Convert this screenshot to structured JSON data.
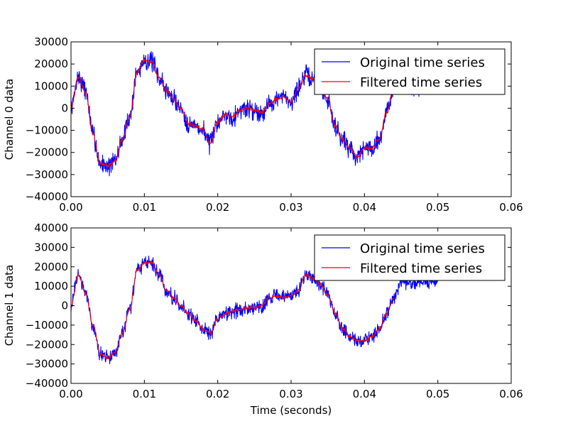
{
  "chart_data": [
    {
      "type": "line",
      "ylabel": "Channel 0 data",
      "xlabel": "",
      "xlim": [
        0.0,
        0.06
      ],
      "ylim": [
        -40000,
        30000
      ],
      "xticks": [
        0.0,
        0.01,
        0.02,
        0.03,
        0.04,
        0.05,
        0.06
      ],
      "xtick_labels": [
        "0.00",
        "0.01",
        "0.02",
        "0.03",
        "0.04",
        "0.05",
        "0.06"
      ],
      "yticks": [
        -40000,
        -30000,
        -20000,
        -10000,
        0,
        10000,
        20000,
        30000
      ],
      "ytick_labels": [
        "−40000",
        "−30000",
        "−20000",
        "−10000",
        "0",
        "10000",
        "20000",
        "30000"
      ],
      "grid": false,
      "legend_position": "top-right",
      "series": [
        {
          "name": "Original time series",
          "color": "#0000ff",
          "noise": 5500,
          "seed": 7,
          "x": [
            0.0,
            0.001,
            0.002,
            0.003,
            0.004,
            0.005,
            0.006,
            0.007,
            0.008,
            0.009,
            0.01,
            0.011,
            0.012,
            0.013,
            0.014,
            0.015,
            0.016,
            0.017,
            0.018,
            0.019,
            0.02,
            0.021,
            0.022,
            0.023,
            0.024,
            0.025,
            0.026,
            0.027,
            0.028,
            0.029,
            0.03,
            0.031,
            0.032,
            0.033,
            0.034,
            0.035,
            0.036,
            0.037,
            0.038,
            0.039,
            0.04,
            0.041,
            0.042,
            0.043,
            0.044,
            0.045,
            0.046,
            0.047,
            0.048
          ],
          "y": [
            0,
            14000,
            8000,
            -12000,
            -25000,
            -26000,
            -24000,
            -14000,
            -4000,
            16000,
            22000,
            21000,
            14000,
            8000,
            4000,
            0,
            -7000,
            -8000,
            -10000,
            -16000,
            -6000,
            -3000,
            -4000,
            -1000,
            0,
            -1000,
            -2000,
            2000,
            4000,
            5000,
            3000,
            9000,
            15000,
            13000,
            10000,
            4000,
            -8000,
            -14000,
            -18000,
            -22000,
            -18000,
            -18000,
            -14000,
            -2000,
            10000,
            10000,
            10000,
            10000,
            10000
          ]
        },
        {
          "name": "Filtered time series",
          "color": "#ff0000",
          "noise": 1100,
          "seed": 19,
          "x": [
            0.0,
            0.001,
            0.002,
            0.003,
            0.004,
            0.005,
            0.006,
            0.007,
            0.008,
            0.009,
            0.01,
            0.011,
            0.012,
            0.013,
            0.014,
            0.015,
            0.016,
            0.017,
            0.018,
            0.019,
            0.02,
            0.021,
            0.022,
            0.023,
            0.024,
            0.025,
            0.026,
            0.027,
            0.028,
            0.029,
            0.03,
            0.031,
            0.032,
            0.033,
            0.034,
            0.035,
            0.036,
            0.037,
            0.038,
            0.039,
            0.04,
            0.041,
            0.042,
            0.043,
            0.044
          ],
          "y": [
            0,
            14000,
            7000,
            -12000,
            -25000,
            -26000,
            -24000,
            -14000,
            -4000,
            16000,
            22000,
            21000,
            14000,
            8000,
            4000,
            0,
            -7000,
            -8000,
            -10000,
            -16000,
            -6000,
            -3000,
            -4000,
            -1000,
            0,
            -1000,
            -2000,
            2000,
            4000,
            5000,
            3000,
            9000,
            15000,
            13000,
            10000,
            4000,
            -8000,
            -14000,
            -18000,
            -22000,
            -18000,
            -18000,
            -14000,
            -2000,
            10000
          ]
        }
      ]
    },
    {
      "type": "line",
      "ylabel": "Channel 1 data",
      "xlabel": "Time (seconds)",
      "xlim": [
        0.0,
        0.06
      ],
      "ylim": [
        -40000,
        40000
      ],
      "xticks": [
        0.0,
        0.01,
        0.02,
        0.03,
        0.04,
        0.05,
        0.06
      ],
      "xtick_labels": [
        "0.00",
        "0.01",
        "0.02",
        "0.03",
        "0.04",
        "0.05",
        "0.06"
      ],
      "yticks": [
        -40000,
        -30000,
        -20000,
        -10000,
        0,
        10000,
        20000,
        30000,
        40000
      ],
      "ytick_labels": [
        "−40000",
        "−30000",
        "−20000",
        "−10000",
        "0",
        "10000",
        "20000",
        "30000",
        "40000"
      ],
      "grid": false,
      "legend_position": "top-right",
      "series": [
        {
          "name": "Original time series",
          "color": "#0000ff",
          "noise": 4500,
          "seed": 31,
          "x": [
            0.0,
            0.001,
            0.002,
            0.003,
            0.004,
            0.005,
            0.006,
            0.007,
            0.008,
            0.009,
            0.01,
            0.011,
            0.012,
            0.013,
            0.014,
            0.015,
            0.016,
            0.017,
            0.018,
            0.019,
            0.02,
            0.021,
            0.022,
            0.023,
            0.024,
            0.025,
            0.026,
            0.027,
            0.028,
            0.029,
            0.03,
            0.031,
            0.032,
            0.033,
            0.034,
            0.035,
            0.036,
            0.037,
            0.038,
            0.039,
            0.04,
            0.041,
            0.042,
            0.043,
            0.044,
            0.045,
            0.046,
            0.047,
            0.048,
            0.049,
            0.05
          ],
          "y": [
            0,
            16000,
            6000,
            -10000,
            -25000,
            -27000,
            -24000,
            -14000,
            -2000,
            18000,
            22000,
            22000,
            16000,
            8000,
            4000,
            0,
            -4000,
            -8000,
            -12000,
            -14000,
            -7000,
            -4000,
            -3000,
            -2000,
            -1000,
            -1000,
            0,
            4000,
            5000,
            4000,
            5000,
            8000,
            16000,
            14000,
            11000,
            6000,
            -4000,
            -12000,
            -16000,
            -18000,
            -18000,
            -16000,
            -12000,
            -4000,
            4000,
            12000,
            12000,
            12000,
            13000,
            12000,
            12000
          ]
        },
        {
          "name": "Filtered time series",
          "color": "#ff0000",
          "noise": 1000,
          "seed": 43,
          "x": [
            0.0,
            0.001,
            0.002,
            0.003,
            0.004,
            0.005,
            0.006,
            0.007,
            0.008,
            0.009,
            0.01,
            0.011,
            0.012,
            0.013,
            0.014,
            0.015,
            0.016,
            0.017,
            0.018,
            0.019,
            0.02,
            0.021,
            0.022,
            0.023,
            0.024,
            0.025,
            0.026,
            0.027,
            0.028,
            0.029,
            0.03,
            0.031,
            0.032,
            0.033,
            0.034,
            0.035,
            0.036,
            0.037,
            0.038,
            0.039,
            0.04,
            0.041,
            0.042,
            0.043,
            0.044
          ],
          "y": [
            0,
            16000,
            6000,
            -10000,
            -25000,
            -27000,
            -24000,
            -14000,
            -2000,
            18000,
            22000,
            22000,
            16000,
            8000,
            4000,
            0,
            -4000,
            -8000,
            -12000,
            -14000,
            -7000,
            -4000,
            -3000,
            -2000,
            -1000,
            -1000,
            0,
            4000,
            5000,
            4000,
            5000,
            8000,
            16000,
            14000,
            11000,
            6000,
            -4000,
            -12000,
            -16000,
            -18000,
            -18000,
            -16000,
            -12000,
            -4000,
            4000
          ]
        }
      ]
    }
  ]
}
